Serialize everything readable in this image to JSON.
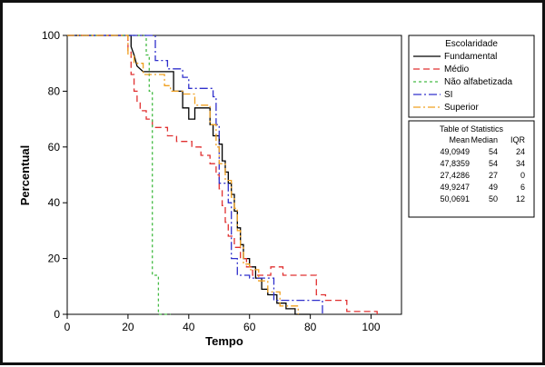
{
  "chart_data": {
    "type": "line",
    "xlabel": "Tempo",
    "ylabel": "Percentual",
    "xlim": [
      0,
      110
    ],
    "ylim": [
      0,
      100
    ],
    "x_ticks": [
      0,
      20,
      40,
      60,
      80,
      100
    ],
    "y_ticks": [
      0,
      20,
      40,
      60,
      80,
      100
    ],
    "grid": false,
    "legend_placement": "right",
    "legend": {
      "title": "Escolaridade",
      "items": [
        "Fundamental",
        "Médio",
        "Não alfabetizada",
        "SI",
        "Superior"
      ]
    },
    "series": [
      {
        "name": "Fundamental",
        "color": "#000000",
        "dash": "",
        "points": [
          [
            0,
            100
          ],
          [
            21,
            100
          ],
          [
            21,
            96
          ],
          [
            22,
            93
          ],
          [
            23,
            89
          ],
          [
            25,
            87
          ],
          [
            35,
            87
          ],
          [
            35,
            80
          ],
          [
            38,
            80
          ],
          [
            38,
            74
          ],
          [
            40,
            74
          ],
          [
            40,
            70
          ],
          [
            42,
            70
          ],
          [
            42,
            74
          ],
          [
            47,
            74
          ],
          [
            47,
            68
          ],
          [
            48,
            68
          ],
          [
            48,
            64
          ],
          [
            50,
            64
          ],
          [
            50,
            61
          ],
          [
            51,
            61
          ],
          [
            51,
            55
          ],
          [
            52,
            55
          ],
          [
            52,
            51
          ],
          [
            53,
            51
          ],
          [
            53,
            47
          ],
          [
            54,
            47
          ],
          [
            54,
            43
          ],
          [
            55,
            43
          ],
          [
            55,
            37
          ],
          [
            56,
            37
          ],
          [
            56,
            31
          ],
          [
            57,
            31
          ],
          [
            57,
            25
          ],
          [
            58,
            25
          ],
          [
            58,
            20
          ],
          [
            60,
            20
          ],
          [
            60,
            17
          ],
          [
            62,
            17
          ],
          [
            62,
            13
          ],
          [
            64,
            13
          ],
          [
            64,
            9
          ],
          [
            66,
            9
          ],
          [
            66,
            7
          ],
          [
            69,
            7
          ],
          [
            69,
            4
          ],
          [
            72,
            4
          ],
          [
            72,
            2
          ],
          [
            75,
            2
          ],
          [
            75,
            0
          ],
          [
            80,
            0
          ]
        ]
      },
      {
        "name": "Médio",
        "color": "#e03030",
        "dash": "7,4",
        "points": [
          [
            0,
            100
          ],
          [
            20,
            100
          ],
          [
            20,
            94
          ],
          [
            21,
            94
          ],
          [
            21,
            86
          ],
          [
            22,
            86
          ],
          [
            22,
            80
          ],
          [
            23,
            80
          ],
          [
            23,
            76
          ],
          [
            24,
            76
          ],
          [
            24,
            73
          ],
          [
            26,
            73
          ],
          [
            26,
            70
          ],
          [
            28,
            70
          ],
          [
            28,
            67
          ],
          [
            33,
            67
          ],
          [
            33,
            64
          ],
          [
            36,
            64
          ],
          [
            36,
            62
          ],
          [
            41,
            62
          ],
          [
            41,
            60
          ],
          [
            44,
            60
          ],
          [
            44,
            57
          ],
          [
            47,
            57
          ],
          [
            47,
            54
          ],
          [
            49,
            54
          ],
          [
            49,
            50
          ],
          [
            50,
            50
          ],
          [
            50,
            45
          ],
          [
            51,
            45
          ],
          [
            51,
            39
          ],
          [
            52,
            39
          ],
          [
            52,
            33
          ],
          [
            53,
            33
          ],
          [
            53,
            28
          ],
          [
            55,
            28
          ],
          [
            55,
            24
          ],
          [
            57,
            24
          ],
          [
            57,
            20
          ],
          [
            59,
            20
          ],
          [
            59,
            17
          ],
          [
            61,
            17
          ],
          [
            61,
            14
          ],
          [
            67,
            14
          ],
          [
            67,
            17
          ],
          [
            71,
            17
          ],
          [
            71,
            14
          ],
          [
            82,
            14
          ],
          [
            82,
            7
          ],
          [
            85,
            7
          ],
          [
            85,
            5
          ],
          [
            92,
            5
          ],
          [
            92,
            1
          ],
          [
            102,
            1
          ],
          [
            102,
            0
          ]
        ]
      },
      {
        "name": "Não alfabetizada",
        "color": "#44bb44",
        "dash": "3,3",
        "points": [
          [
            0,
            100
          ],
          [
            26,
            100
          ],
          [
            26,
            93
          ],
          [
            27,
            93
          ],
          [
            27,
            80
          ],
          [
            28,
            80
          ],
          [
            28,
            14
          ],
          [
            30,
            14
          ],
          [
            30,
            0
          ],
          [
            34,
            0
          ]
        ]
      },
      {
        "name": "SI",
        "color": "#3030cc",
        "dash": "9,3,2,3",
        "points": [
          [
            0,
            100
          ],
          [
            29,
            100
          ],
          [
            29,
            91
          ],
          [
            33,
            91
          ],
          [
            33,
            88
          ],
          [
            38,
            88
          ],
          [
            38,
            85
          ],
          [
            40,
            85
          ],
          [
            40,
            81
          ],
          [
            48,
            81
          ],
          [
            48,
            78
          ],
          [
            49,
            78
          ],
          [
            49,
            68
          ],
          [
            50,
            68
          ],
          [
            50,
            47
          ],
          [
            53,
            47
          ],
          [
            53,
            40
          ],
          [
            54,
            40
          ],
          [
            54,
            20
          ],
          [
            56,
            20
          ],
          [
            56,
            14
          ],
          [
            60,
            14
          ],
          [
            60,
            13
          ],
          [
            68,
            13
          ],
          [
            68,
            5
          ],
          [
            84,
            5
          ],
          [
            84,
            0
          ]
        ]
      },
      {
        "name": "Superior",
        "color": "#f0a020",
        "dash": "8,3,2,3",
        "points": [
          [
            0,
            100
          ],
          [
            18,
            100
          ],
          [
            20,
            100
          ],
          [
            20,
            93
          ],
          [
            22,
            93
          ],
          [
            22,
            90
          ],
          [
            25,
            90
          ],
          [
            25,
            86
          ],
          [
            32,
            86
          ],
          [
            32,
            82
          ],
          [
            34,
            82
          ],
          [
            34,
            80
          ],
          [
            38,
            80
          ],
          [
            38,
            79
          ],
          [
            42,
            79
          ],
          [
            42,
            75
          ],
          [
            47,
            75
          ],
          [
            47,
            68
          ],
          [
            49,
            68
          ],
          [
            49,
            60
          ],
          [
            50,
            60
          ],
          [
            50,
            54
          ],
          [
            52,
            54
          ],
          [
            52,
            48
          ],
          [
            54,
            48
          ],
          [
            54,
            42
          ],
          [
            55,
            42
          ],
          [
            55,
            38
          ],
          [
            56,
            38
          ],
          [
            56,
            30
          ],
          [
            57,
            30
          ],
          [
            57,
            24
          ],
          [
            58,
            24
          ],
          [
            58,
            18
          ],
          [
            60,
            18
          ],
          [
            60,
            16
          ],
          [
            63,
            16
          ],
          [
            63,
            12
          ],
          [
            66,
            12
          ],
          [
            66,
            8
          ],
          [
            70,
            8
          ],
          [
            70,
            3
          ],
          [
            76,
            3
          ],
          [
            76,
            0
          ]
        ]
      }
    ],
    "statistics_table": {
      "title": "Table of Statistics",
      "columns": [
        "Mean",
        "Median",
        "IQR"
      ],
      "rows": [
        [
          "49,0949",
          "54",
          "24"
        ],
        [
          "47,8359",
          "54",
          "34"
        ],
        [
          "27,4286",
          "27",
          "0"
        ],
        [
          "49,9247",
          "49",
          "6"
        ],
        [
          "50,0691",
          "50",
          "12"
        ]
      ]
    }
  }
}
